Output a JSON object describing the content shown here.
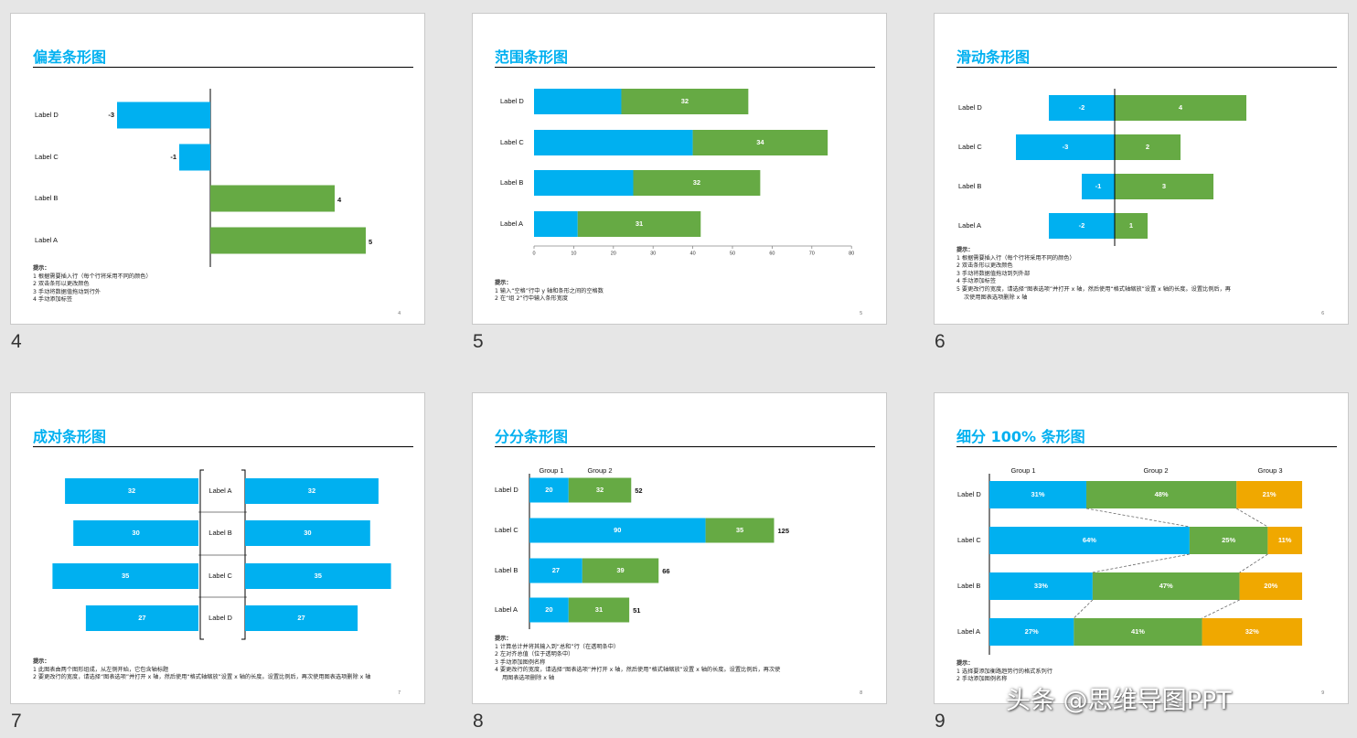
{
  "colors": {
    "blue": "#00b0f0",
    "green": "#66aa44",
    "orange": "#f0a800",
    "title": "#00b0f0"
  },
  "watermark": "头条 @思维导图PPT",
  "slides": [
    {
      "number_label": "4",
      "page_num": "4",
      "title": "偏差条形图",
      "notes": [
        {
          "text": "提示：",
          "bold": true
        },
        {
          "text": "1 根据需要插入行（每个行将采用不同的颜色）"
        },
        {
          "text": "2 双击条形以更改颜色"
        },
        {
          "text": "3 手动将数据值拖动到行外"
        },
        {
          "text": "4 手动添加标签"
        }
      ],
      "chart_data": {
        "type": "bar",
        "categories": [
          "Label D",
          "Label C",
          "Label B",
          "Label A"
        ],
        "values": [
          -3,
          -1,
          4,
          5
        ],
        "colors": {
          "negative": "#00b0f0",
          "positive": "#66aa44"
        }
      }
    },
    {
      "number_label": "5",
      "page_num": "5",
      "title": "范围条形图",
      "notes": [
        {
          "text": "提示：",
          "bold": true
        },
        {
          "text": "1 输入“空格”行中 y 轴和条形之间的空格数"
        },
        {
          "text": "2 在“组 2”行中输入条形宽度"
        }
      ],
      "chart_data": {
        "type": "bar",
        "categories": [
          "Label D",
          "Label C",
          "Label B",
          "Label A"
        ],
        "series": [
          {
            "values": [
              22,
              40,
              25,
              11
            ],
            "color": "#00b0f0"
          },
          {
            "values": [
              32,
              34,
              32,
              31
            ],
            "color": "#66aa44"
          }
        ],
        "xlim": [
          0,
          80
        ],
        "xticks": [
          "0",
          "10",
          "20",
          "30",
          "40",
          "50",
          "60",
          "70",
          "80"
        ]
      }
    },
    {
      "number_label": "6",
      "page_num": "6",
      "title": "滑动条形图",
      "notes": [
        {
          "text": "提示：",
          "bold": true
        },
        {
          "text": "1 根据需要插入行（每个行将采用不同的颜色）"
        },
        {
          "text": "2 双击条形以更改颜色"
        },
        {
          "text": "3 手动将数据值拖动到列外部"
        },
        {
          "text": "4 手动添加标签"
        },
        {
          "text": "5 要更改行的宽度，请选择“图表选项”并打开 x 轴，然后使用“格式轴缩放”设置 x 轴的长度。设置比例后，再"
        },
        {
          "text": "次使用图表选项删除 x 轴",
          "indent": true
        }
      ],
      "chart_data": {
        "type": "bar",
        "categories": [
          "Label D",
          "Label C",
          "Label B",
          "Label A"
        ],
        "negative": [
          -2,
          -3,
          -1,
          -2
        ],
        "positive": [
          4,
          2,
          3,
          1
        ]
      }
    },
    {
      "number_label": "7",
      "page_num": "7",
      "title": "成对条形图",
      "notes": [
        {
          "text": "提示：",
          "bold": true
        },
        {
          "text": "1 此图表由两个图形组成，从左侧开始，它包含轴标题"
        },
        {
          "text": "2 要更改行的宽度，请选择“图表选项”并打开 x 轴，然后使用“格式轴缩放”设置 x 轴的长度。设置比例后，再次使用图表选项删除 x 轴"
        }
      ],
      "chart_data": {
        "type": "bar",
        "categories": [
          "Label A",
          "Label B",
          "Label C",
          "Label D"
        ],
        "left": [
          32,
          30,
          35,
          27
        ],
        "right": [
          32,
          30,
          35,
          27
        ]
      }
    },
    {
      "number_label": "8",
      "page_num": "8",
      "title": "分分条形图",
      "notes": [
        {
          "text": "提示：",
          "bold": true
        },
        {
          "text": "1 计算总计并将其输入到“总和”行（在透明条中）"
        },
        {
          "text": "2 左对齐总值（位于透明条中）"
        },
        {
          "text": "3 手动添加图例名称"
        },
        {
          "text": "4 要更改行的宽度，请选择“图表选项”并打开 x 轴，然后使用“格式轴缩放”设置 x 轴的长度。设置比例后，再次使"
        },
        {
          "text": "用图表选项删除 x 轴",
          "indent": true
        }
      ],
      "chart_data": {
        "type": "bar",
        "categories": [
          "Label D",
          "Label C",
          "Label B",
          "Label A"
        ],
        "legend": [
          "Group 1",
          "Group 2"
        ],
        "series": [
          {
            "name": "Group 1",
            "values": [
              20,
              90,
              27,
              20
            ],
            "color": "#00b0f0"
          },
          {
            "name": "Group 2",
            "values": [
              32,
              35,
              39,
              31
            ],
            "color": "#66aa44"
          }
        ],
        "totals": [
          52,
          125,
          66,
          51
        ]
      }
    },
    {
      "number_label": "9",
      "page_num": "9",
      "title": "细分 100% 条形图",
      "notes": [
        {
          "text": "提示：",
          "bold": true
        },
        {
          "text": "1 选择要添加衡路趋势行的格式系列行"
        },
        {
          "text": "2 手动添加图例名称"
        }
      ],
      "chart_data": {
        "type": "bar",
        "stacked": "percent",
        "categories": [
          "Label D",
          "Label C",
          "Label B",
          "Label A"
        ],
        "legend": [
          "Group 1",
          "Group 2",
          "Group 3"
        ],
        "series": [
          {
            "name": "Group 1",
            "values": [
              31,
              64,
              33,
              27
            ],
            "labels": [
              "31%",
              "64%",
              "33%",
              "27%"
            ],
            "color": "#00b0f0"
          },
          {
            "name": "Group 2",
            "values": [
              48,
              25,
              47,
              41
            ],
            "labels": [
              "48%",
              "25%",
              "47%",
              "41%"
            ],
            "color": "#66aa44"
          },
          {
            "name": "Group 3",
            "values": [
              21,
              11,
              20,
              32
            ],
            "labels": [
              "21%",
              "11%",
              "20%",
              "32%"
            ],
            "color": "#f0a800"
          }
        ]
      }
    }
  ]
}
